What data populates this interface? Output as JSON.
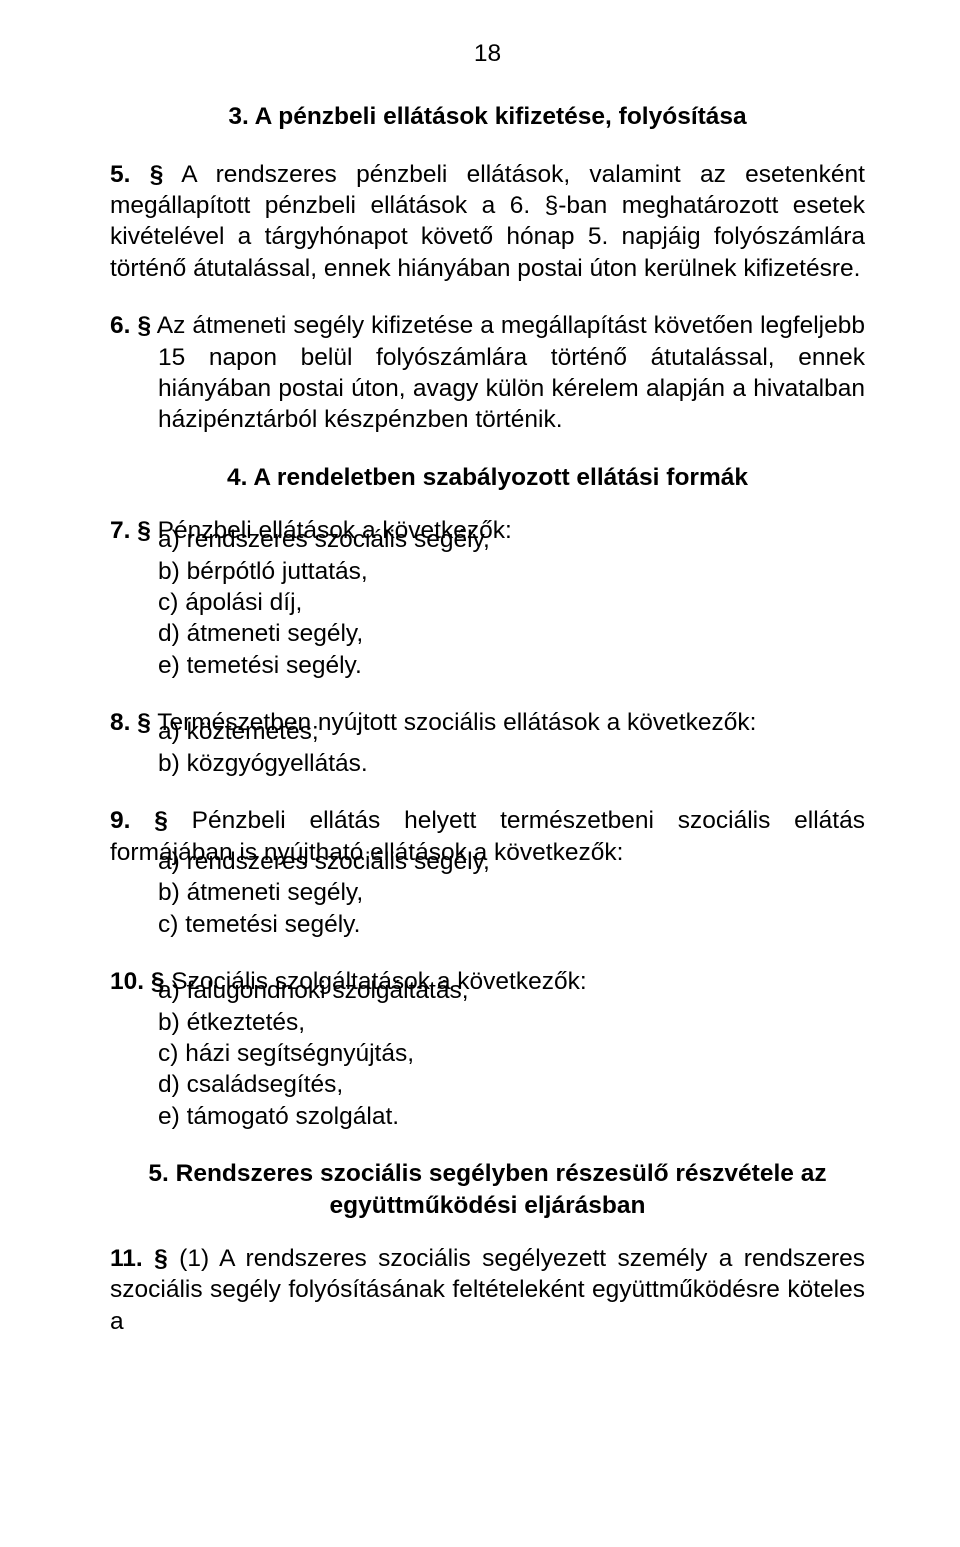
{
  "colors": {
    "background": "#ffffff",
    "text": "#000000"
  },
  "typography": {
    "font_family": "Arial",
    "body_fontsize_pt": 18,
    "heading_weight": "bold"
  },
  "page_number": "18",
  "heading_3": "3. A pénzbeli ellátások kifizetése, folyósítása",
  "p5": {
    "num": "5. §",
    "text": " A rendszeres pénzbeli ellátások, valamint az esetenként megállapított pénzbeli ellátások a 6. §-ban meghatározott esetek kivételével a tárgyhónapot követő hónap 5. napjáig folyószámlára történő átutalással, ennek hiányában postai úton kerülnek kifizetésre."
  },
  "p6": {
    "num": "6. §",
    "text": " Az átmeneti segély kifizetése a megállapítást követően legfeljebb 15 napon belül folyószámlára történő átutalással, ennek hiányában postai úton, avagy külön kérelem alapján a hivatalban házipénztárból készpénzben történik."
  },
  "heading_4": "4. A rendeletben szabályozott ellátási formák",
  "p7": {
    "num": "7. §",
    "lead": " Pénzbeli ellátások a következők:",
    "items": {
      "a": "a) rendszeres szociális segély,",
      "b": "b) bérpótló juttatás,",
      "c": "c)  ápolási díj,",
      "d": "d) átmeneti segély,",
      "e": "e) temetési segély."
    }
  },
  "p8": {
    "num": "8. §",
    "lead": " Természetben nyújtott szociális ellátások a következők:",
    "items": {
      "a": "a) köztemetés;",
      "b": " b) közgyógyellátás."
    }
  },
  "p9": {
    "num": "9. §",
    "lead": " Pénzbeli ellátás helyett természetbeni szociális ellátás formájában is nyújtható ellátások a következők:",
    "items": {
      "a": "a)  rendszeres szociális segély,",
      "b": "b) átmeneti segély,",
      "c": "c) temetési segély."
    }
  },
  "p10": {
    "num": "10. §",
    "lead": " Szociális szolgáltatások a következők:",
    "items": {
      "a": "a) falugondnoki szolgáltatás,",
      "b": " b) étkeztetés,",
      "c": "c) házi segítségnyújtás,",
      "d": "d) családsegítés,",
      "e": "e) támogató szolgálat."
    }
  },
  "heading_5": "5. Rendszeres szociális segélyben részesülő részvétele az együttműködési eljárásban",
  "p11": {
    "num": "11. §",
    "text": "  (1) A rendszeres szociális segélyezett személy a rendszeres szociális segély folyósításának feltételeként együttműködésre köteles a"
  }
}
